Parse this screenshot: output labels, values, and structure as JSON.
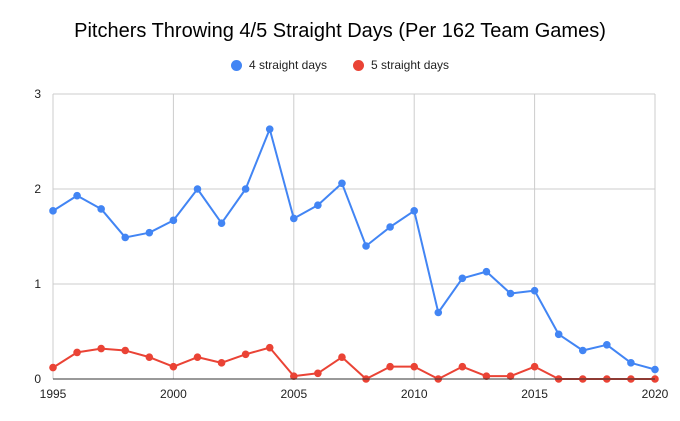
{
  "chart_data": {
    "type": "line",
    "title": "Pitchers Throwing 4/5 Straight Days (Per 162 Team Games)",
    "xlabel": "",
    "ylabel": "",
    "x": [
      1995,
      1996,
      1997,
      1998,
      1999,
      2000,
      2001,
      2002,
      2003,
      2004,
      2005,
      2006,
      2007,
      2008,
      2009,
      2010,
      2011,
      2012,
      2013,
      2014,
      2015,
      2016,
      2017,
      2018,
      2019,
      2020
    ],
    "xlim": [
      1995,
      2020
    ],
    "ylim": [
      0,
      3
    ],
    "x_ticks": [
      "1995",
      "2000",
      "2005",
      "2010",
      "2015",
      "2020"
    ],
    "y_ticks": [
      "0",
      "1",
      "2",
      "3"
    ],
    "grid": true,
    "legend_position": "top",
    "series": [
      {
        "name": "4 straight days",
        "color": "#4285f4",
        "values": [
          1.77,
          1.93,
          1.79,
          1.49,
          1.54,
          1.67,
          2.0,
          1.64,
          2.0,
          2.63,
          1.69,
          1.83,
          2.06,
          1.4,
          1.6,
          1.77,
          0.7,
          1.06,
          1.13,
          0.9,
          0.93,
          0.47,
          0.3,
          0.36,
          0.17,
          0.1
        ]
      },
      {
        "name": "5 straight days",
        "color": "#ea4335",
        "values": [
          0.12,
          0.28,
          0.32,
          0.3,
          0.23,
          0.13,
          0.23,
          0.17,
          0.26,
          0.33,
          0.03,
          0.06,
          0.23,
          0,
          0.13,
          0.13,
          0,
          0.13,
          0.03,
          0.03,
          0.13,
          0,
          0,
          0,
          0,
          0
        ]
      }
    ]
  }
}
